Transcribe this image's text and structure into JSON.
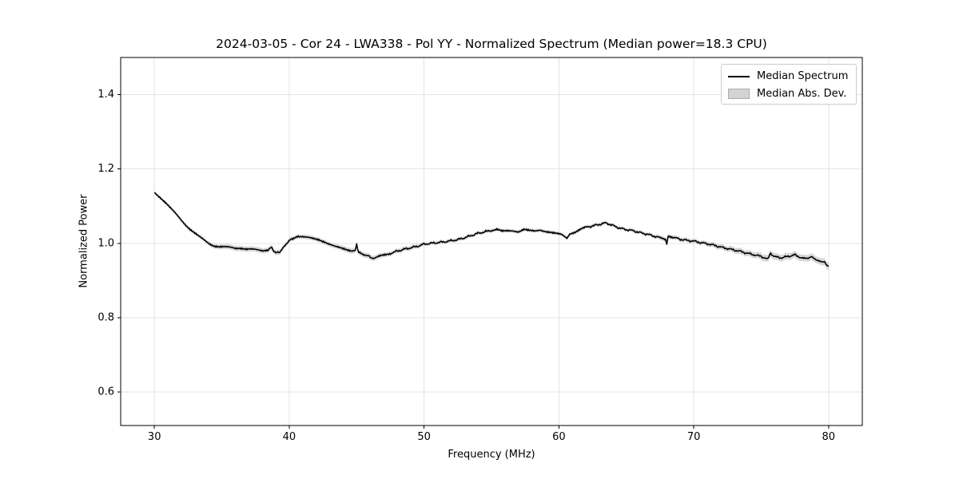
{
  "chart_data": {
    "type": "line",
    "title": "2024-03-05 - Cor 24 - LWA338 - Pol YY - Normalized Spectrum (Median power=18.3 CPU)",
    "xlabel": "Frequency (MHz)",
    "ylabel": "Normalized Power",
    "xlim": [
      27.5,
      82.5
    ],
    "ylim": [
      0.51,
      1.5
    ],
    "x_ticks": [
      30,
      40,
      50,
      60,
      70,
      80
    ],
    "x_tick_labels": [
      "30",
      "40",
      "50",
      "60",
      "70",
      "80"
    ],
    "y_ticks": [
      0.6,
      0.8,
      1.0,
      1.2,
      1.4
    ],
    "y_tick_labels": [
      "0.6",
      "0.8",
      "1.0",
      "1.2",
      "1.4"
    ],
    "grid": true,
    "legend": {
      "position": "upper right",
      "entries": [
        {
          "label": "Median Spectrum",
          "type": "line",
          "color": "#000000"
        },
        {
          "label": "Median Abs. Dev.",
          "type": "patch",
          "color": "#d4d4d4"
        }
      ]
    },
    "colors": {
      "line": "#000000",
      "band": "#c9c9c9",
      "grid": "#e3e3e3",
      "spine": "#000000",
      "background": "#ffffff"
    },
    "noise_amp": 0.0035,
    "series": [
      {
        "name": "Median Spectrum",
        "note": "points are [frequency_MHz, normalized_power, median_abs_dev]",
        "points": [
          [
            30.0,
            1.138,
            0.004
          ],
          [
            30.4,
            1.125,
            0.004
          ],
          [
            30.8,
            1.11,
            0.004
          ],
          [
            31.2,
            1.094,
            0.004
          ],
          [
            31.6,
            1.079,
            0.004
          ],
          [
            32.0,
            1.063,
            0.005
          ],
          [
            32.4,
            1.047,
            0.005
          ],
          [
            32.8,
            1.033,
            0.005
          ],
          [
            33.2,
            1.021,
            0.005
          ],
          [
            33.6,
            1.011,
            0.005
          ],
          [
            34.0,
            1.001,
            0.006
          ],
          [
            34.4,
            0.994,
            0.006
          ],
          [
            34.8,
            0.991,
            0.006
          ],
          [
            35.2,
            0.99,
            0.007
          ],
          [
            35.6,
            0.989,
            0.007
          ],
          [
            36.0,
            0.987,
            0.007
          ],
          [
            36.4,
            0.988,
            0.007
          ],
          [
            36.8,
            0.985,
            0.007
          ],
          [
            37.2,
            0.984,
            0.007
          ],
          [
            37.6,
            0.982,
            0.007
          ],
          [
            38.0,
            0.98,
            0.007
          ],
          [
            38.4,
            0.983,
            0.007
          ],
          [
            38.7,
            0.988,
            0.007
          ],
          [
            39.0,
            0.974,
            0.007
          ],
          [
            39.3,
            0.977,
            0.007
          ],
          [
            39.6,
            0.99,
            0.006
          ],
          [
            39.9,
            1.004,
            0.006
          ],
          [
            40.2,
            1.012,
            0.006
          ],
          [
            40.6,
            1.02,
            0.006
          ],
          [
            41.0,
            1.018,
            0.006
          ],
          [
            41.4,
            1.015,
            0.006
          ],
          [
            41.8,
            1.012,
            0.006
          ],
          [
            42.2,
            1.01,
            0.006
          ],
          [
            42.6,
            1.005,
            0.006
          ],
          [
            43.0,
            0.998,
            0.006
          ],
          [
            43.4,
            0.991,
            0.006
          ],
          [
            43.8,
            0.987,
            0.007
          ],
          [
            44.2,
            0.984,
            0.007
          ],
          [
            44.6,
            0.981,
            0.007
          ],
          [
            44.9,
            0.979,
            0.007
          ],
          [
            45.0,
            0.999,
            0.007
          ],
          [
            45.1,
            0.978,
            0.007
          ],
          [
            45.5,
            0.971,
            0.007
          ],
          [
            46.0,
            0.963,
            0.007
          ],
          [
            46.3,
            0.959,
            0.007
          ],
          [
            46.7,
            0.965,
            0.007
          ],
          [
            47.1,
            0.969,
            0.006
          ],
          [
            47.5,
            0.973,
            0.006
          ],
          [
            48.0,
            0.979,
            0.006
          ],
          [
            48.5,
            0.984,
            0.006
          ],
          [
            49.0,
            0.988,
            0.006
          ],
          [
            49.5,
            0.992,
            0.006
          ],
          [
            50.0,
            0.998,
            0.005
          ],
          [
            50.5,
            1.0,
            0.005
          ],
          [
            51.0,
            1.002,
            0.005
          ],
          [
            51.5,
            1.004,
            0.005
          ],
          [
            52.0,
            1.007,
            0.005
          ],
          [
            52.5,
            1.01,
            0.005
          ],
          [
            53.0,
            1.015,
            0.005
          ],
          [
            53.5,
            1.021,
            0.005
          ],
          [
            54.0,
            1.027,
            0.005
          ],
          [
            54.5,
            1.031,
            0.005
          ],
          [
            55.0,
            1.035,
            0.005
          ],
          [
            55.4,
            1.038,
            0.005
          ],
          [
            55.8,
            1.032,
            0.005
          ],
          [
            56.2,
            1.033,
            0.005
          ],
          [
            56.6,
            1.034,
            0.005
          ],
          [
            57.0,
            1.032,
            0.005
          ],
          [
            57.4,
            1.038,
            0.005
          ],
          [
            57.8,
            1.034,
            0.005
          ],
          [
            58.2,
            1.032,
            0.005
          ],
          [
            58.6,
            1.036,
            0.005
          ],
          [
            59.0,
            1.033,
            0.005
          ],
          [
            59.4,
            1.03,
            0.005
          ],
          [
            59.8,
            1.026,
            0.005
          ],
          [
            60.2,
            1.023,
            0.005
          ],
          [
            60.6,
            1.014,
            0.005
          ],
          [
            60.8,
            1.026,
            0.005
          ],
          [
            61.2,
            1.031,
            0.005
          ],
          [
            61.6,
            1.038,
            0.005
          ],
          [
            62.0,
            1.043,
            0.005
          ],
          [
            62.5,
            1.047,
            0.005
          ],
          [
            63.0,
            1.051,
            0.005
          ],
          [
            63.5,
            1.055,
            0.005
          ],
          [
            64.0,
            1.048,
            0.005
          ],
          [
            64.5,
            1.041,
            0.005
          ],
          [
            65.0,
            1.037,
            0.005
          ],
          [
            65.5,
            1.034,
            0.005
          ],
          [
            66.0,
            1.029,
            0.005
          ],
          [
            66.5,
            1.025,
            0.005
          ],
          [
            67.0,
            1.02,
            0.005
          ],
          [
            67.5,
            1.015,
            0.006
          ],
          [
            67.9,
            1.011,
            0.006
          ],
          [
            68.0,
            0.996,
            0.006
          ],
          [
            68.1,
            1.021,
            0.006
          ],
          [
            68.5,
            1.016,
            0.006
          ],
          [
            69.0,
            1.011,
            0.006
          ],
          [
            69.5,
            1.008,
            0.006
          ],
          [
            70.0,
            1.006,
            0.006
          ],
          [
            70.5,
            1.002,
            0.006
          ],
          [
            71.0,
            0.999,
            0.006
          ],
          [
            71.5,
            0.995,
            0.007
          ],
          [
            72.0,
            0.99,
            0.007
          ],
          [
            72.5,
            0.986,
            0.007
          ],
          [
            73.0,
            0.982,
            0.008
          ],
          [
            73.5,
            0.978,
            0.008
          ],
          [
            74.0,
            0.973,
            0.008
          ],
          [
            74.5,
            0.969,
            0.008
          ],
          [
            75.0,
            0.965,
            0.009
          ],
          [
            75.5,
            0.957,
            0.009
          ],
          [
            75.7,
            0.973,
            0.009
          ],
          [
            76.0,
            0.964,
            0.009
          ],
          [
            76.5,
            0.961,
            0.009
          ],
          [
            77.0,
            0.965,
            0.009
          ],
          [
            77.5,
            0.969,
            0.009
          ],
          [
            78.0,
            0.961,
            0.009
          ],
          [
            78.4,
            0.958,
            0.009
          ],
          [
            78.7,
            0.965,
            0.009
          ],
          [
            79.0,
            0.957,
            0.009
          ],
          [
            79.4,
            0.953,
            0.009
          ],
          [
            79.7,
            0.948,
            0.01
          ],
          [
            80.0,
            0.939,
            0.01
          ]
        ]
      }
    ]
  }
}
